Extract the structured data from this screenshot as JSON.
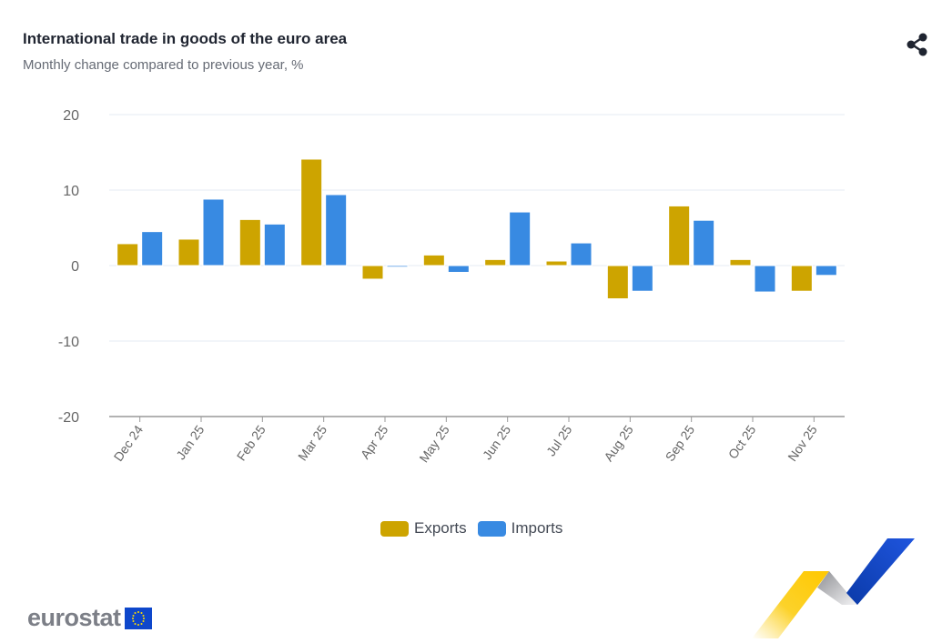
{
  "header": {
    "title": "International trade in goods of the euro area",
    "subtitle": "Monthly change compared to previous year, %",
    "share_icon": "share-icon"
  },
  "colors": {
    "exports": "#cda400",
    "imports": "#388ae2",
    "gridline": "#e6ebf3",
    "axis": "#999999",
    "tick_label": "#666666"
  },
  "chart_data": {
    "type": "bar",
    "title": "International trade in goods of the euro area",
    "subtitle": "Monthly change compared to previous year, %",
    "xlabel": "",
    "ylabel": "",
    "ylim": [
      -20,
      20
    ],
    "yticks": [
      20,
      10,
      0,
      -10,
      -20
    ],
    "grid": true,
    "legend_position": "bottom-center",
    "categories": [
      "Dec 24",
      "Jan 25",
      "Feb 25",
      "Mar 25",
      "Apr 25",
      "May 25",
      "Jun 25",
      "Jul 25",
      "Aug 25",
      "Sep 25",
      "Oct 25",
      "Nov 25"
    ],
    "series": [
      {
        "name": "Exports",
        "color": "#cda400",
        "values": [
          2.9,
          3.5,
          6.1,
          14.1,
          -1.8,
          1.4,
          0.8,
          0.6,
          -4.4,
          7.9,
          0.8,
          -3.4
        ]
      },
      {
        "name": "Imports",
        "color": "#388ae2",
        "values": [
          4.5,
          8.8,
          5.5,
          9.4,
          -0.2,
          -0.9,
          7.1,
          3.0,
          -3.4,
          6.0,
          -3.5,
          -1.3
        ]
      }
    ]
  },
  "legend": {
    "items": [
      {
        "label": "Exports",
        "color": "#cda400"
      },
      {
        "label": "Imports",
        "color": "#388ae2"
      }
    ]
  },
  "footer": {
    "logo_text": "eurostat"
  }
}
